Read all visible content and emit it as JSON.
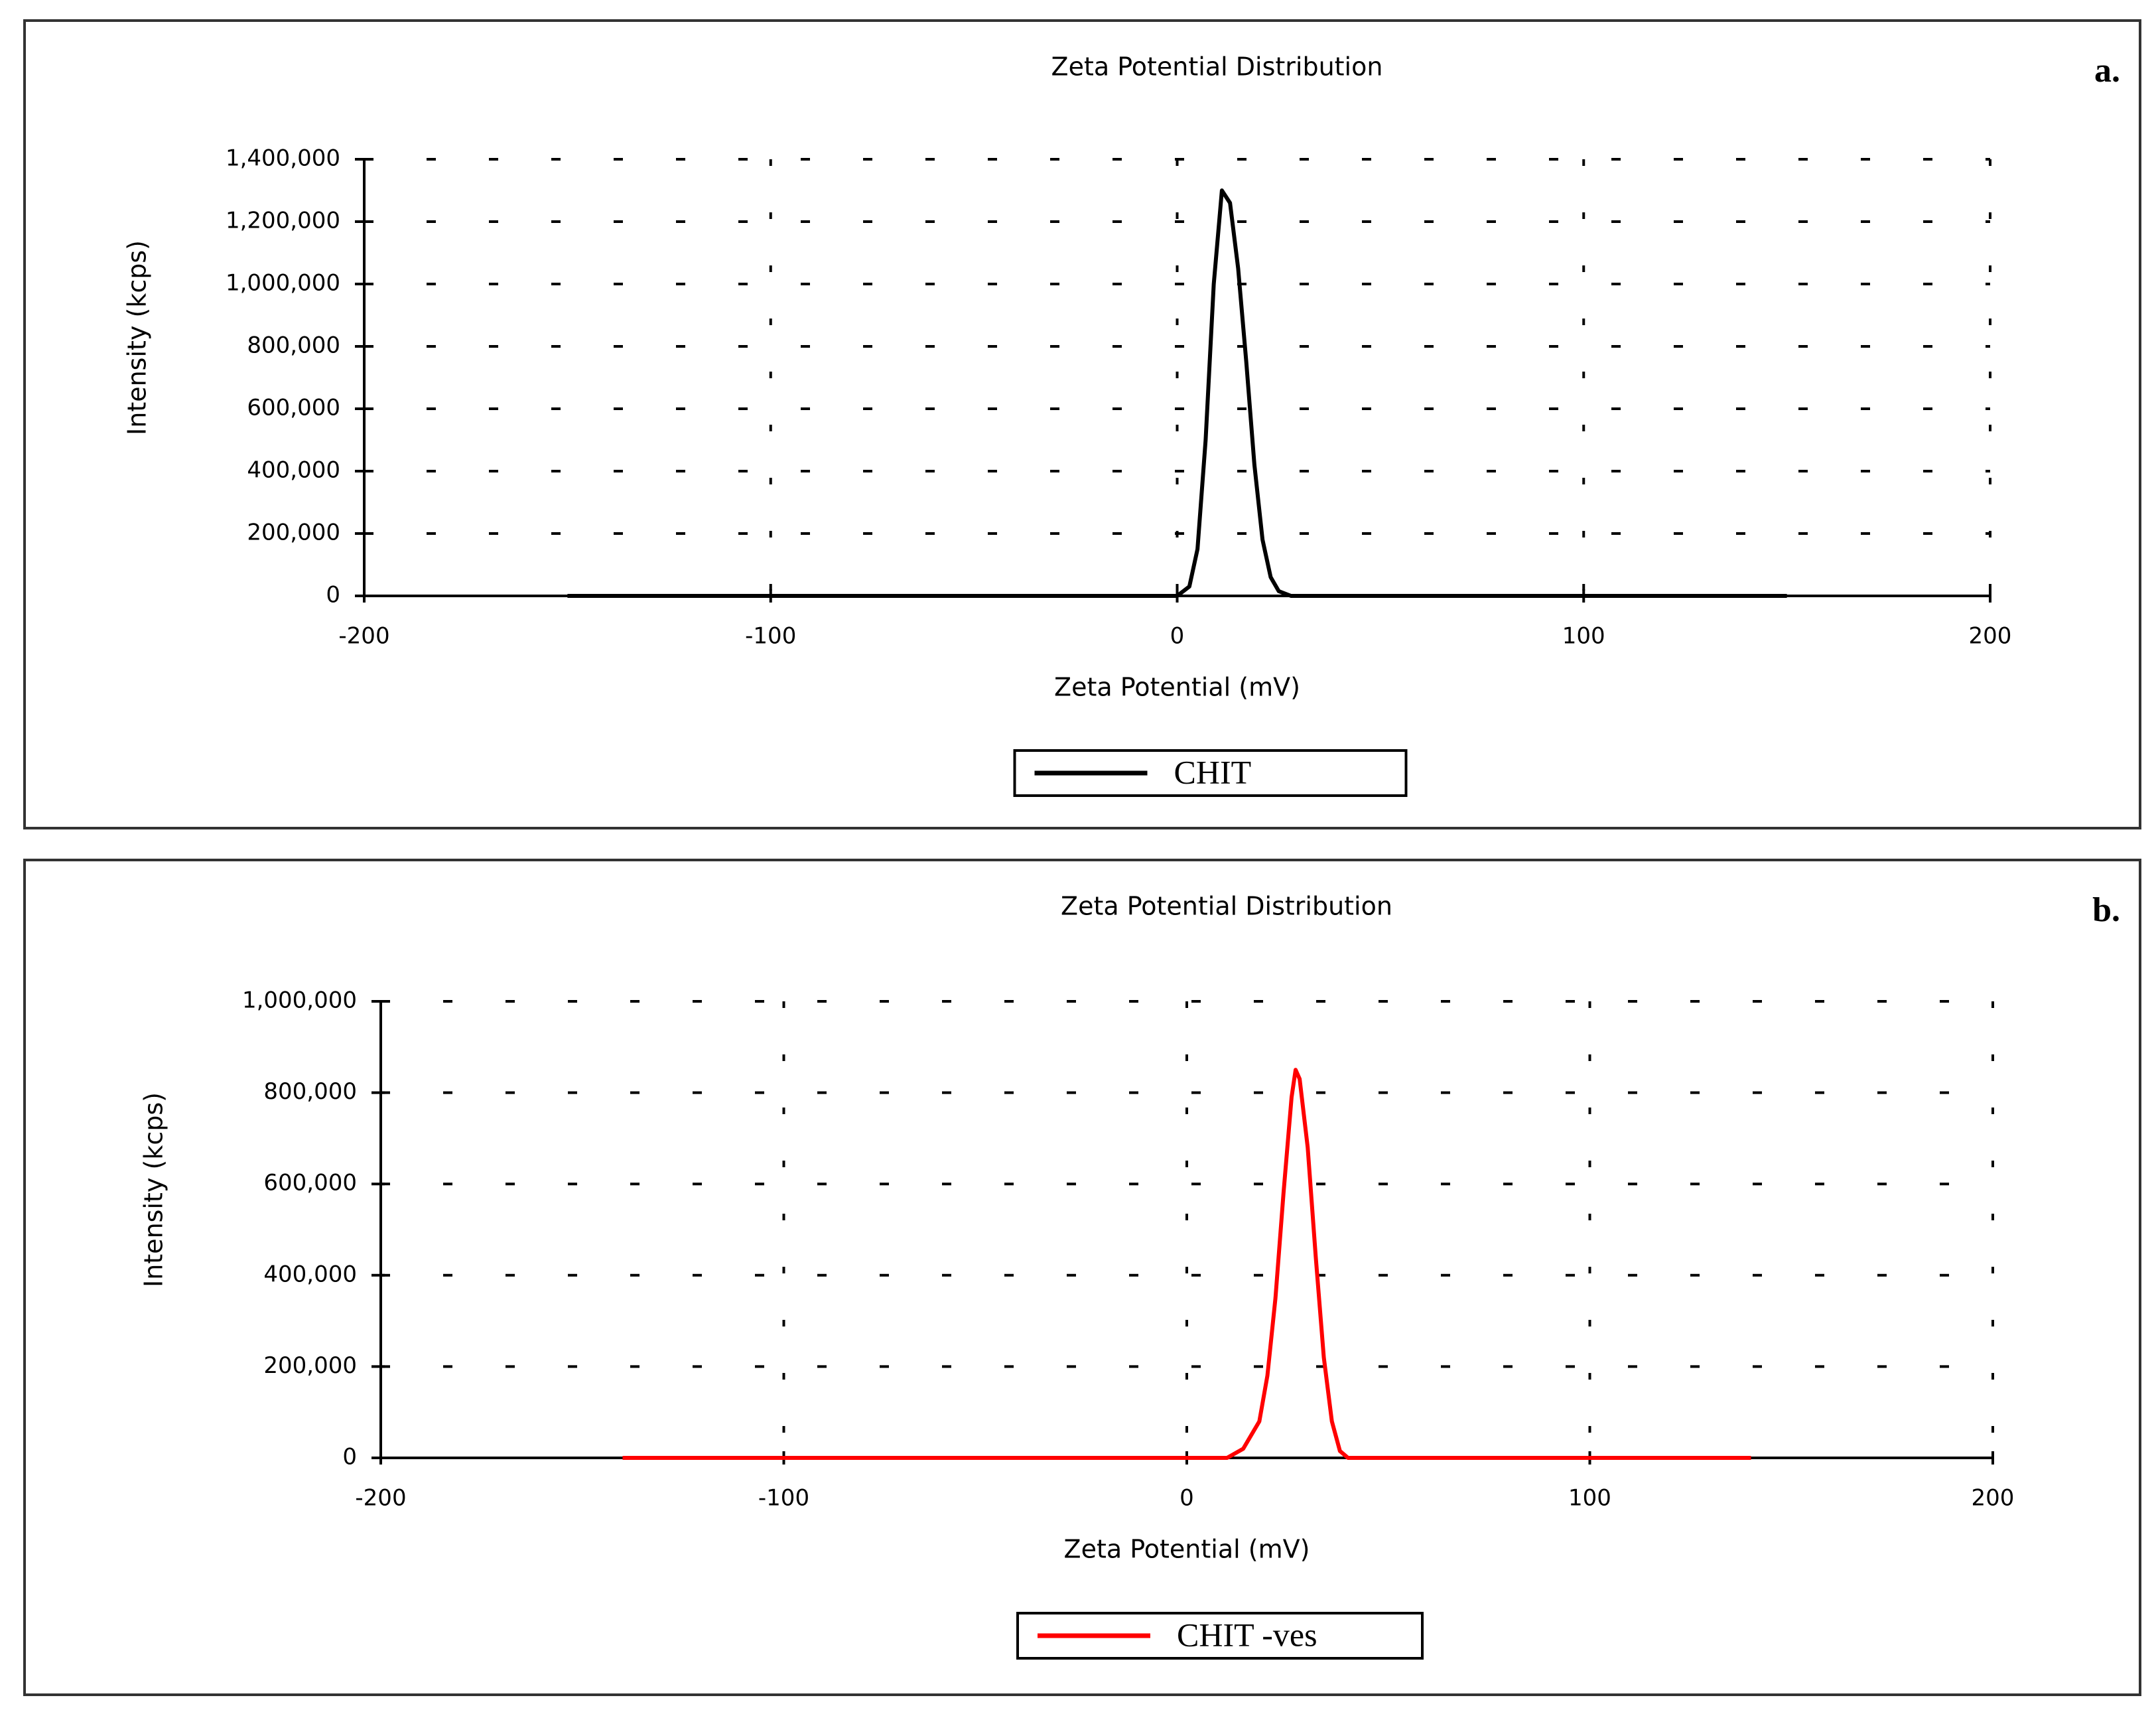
{
  "chart_data": [
    {
      "type": "line",
      "title": "Zeta Potential Distribution",
      "panel_label": "a.",
      "x_label": "Zeta Potential (mV)",
      "y_label": "Intensity (kcps)",
      "series": [
        {
          "name": "CHIT",
          "color": "#000000",
          "x": [
            -150,
            0,
            3,
            5,
            7,
            9,
            11,
            13,
            15,
            17,
            19,
            21,
            23,
            25,
            28,
            150
          ],
          "values": [
            0,
            0,
            30000,
            150000,
            500000,
            1000000,
            1300000,
            1260000,
            1050000,
            750000,
            420000,
            180000,
            60000,
            15000,
            0,
            0
          ]
        }
      ],
      "xlim": [
        -200,
        200
      ],
      "xticks": [
        -200,
        -100,
        0,
        100,
        200
      ],
      "ylim": [
        0,
        1400000
      ],
      "yticks": [
        0,
        {
          "value": 200000,
          "label": "200,000"
        },
        {
          "value": 400000,
          "label": "400,000"
        },
        {
          "value": 600000,
          "label": "600,000"
        },
        {
          "value": 800000,
          "label": "800,000"
        },
        {
          "value": 1000000,
          "label": "1,000,000"
        },
        {
          "value": 1200000,
          "label": "1,200,000"
        },
        {
          "value": 1400000,
          "label": "1,400,000"
        }
      ],
      "grid": true
    },
    {
      "type": "line",
      "title": "Zeta Potential Distribution",
      "panel_label": "b.",
      "x_label": "Zeta Potential (mV)",
      "y_label": "Intensity (kcps)",
      "series": [
        {
          "name": "CHIT -ves",
          "color": "#ff0000",
          "x": [
            -140,
            10,
            14,
            18,
            20,
            22,
            24,
            26,
            27,
            28,
            30,
            32,
            34,
            36,
            38,
            40,
            140
          ],
          "values": [
            0,
            0,
            20000,
            80000,
            180000,
            350000,
            580000,
            790000,
            850000,
            830000,
            680000,
            440000,
            220000,
            80000,
            15000,
            0,
            0
          ]
        }
      ],
      "xlim": [
        -200,
        200
      ],
      "xticks": [
        -200,
        -100,
        0,
        100,
        200
      ],
      "ylim": [
        0,
        1000000
      ],
      "yticks": [
        0,
        {
          "value": 200000,
          "label": "200,000"
        },
        {
          "value": 400000,
          "label": "400,000"
        },
        {
          "value": 600000,
          "label": "600,000"
        },
        {
          "value": 800000,
          "label": "800,000"
        },
        {
          "value": 1000000,
          "label": "1,000,000"
        }
      ],
      "grid": true
    }
  ]
}
